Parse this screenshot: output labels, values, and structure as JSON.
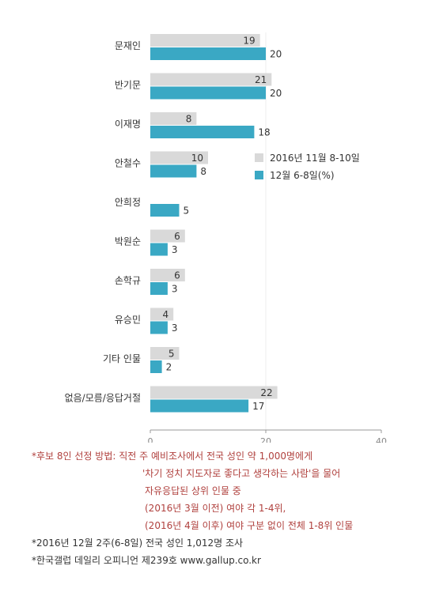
{
  "chart_data": {
    "type": "bar",
    "orientation": "horizontal",
    "categories": [
      "문재인",
      "반기문",
      "이재명",
      "안철수",
      "안희정",
      "박원순",
      "손학규",
      "유승민",
      "기타 인물",
      "없음/모름/응답거절"
    ],
    "series": [
      {
        "name": "2016년 11월 8-10일",
        "color": "#d9d9d9",
        "values": [
          19,
          21,
          8,
          10,
          null,
          6,
          6,
          4,
          5,
          22
        ]
      },
      {
        "name": "12월 6-8일(%)",
        "color": "#3aa8c4",
        "values": [
          20,
          20,
          18,
          8,
          5,
          3,
          3,
          3,
          2,
          17
        ]
      }
    ],
    "xlim": [
      0,
      40
    ],
    "xticks": [
      "0",
      "20",
      "40"
    ],
    "legend_position": "right"
  },
  "notes": {
    "line1": "*후보 8인 선정 방법: 직전 주 예비조사에서 전국 성인 약 1,000명에게",
    "line2": "'차기 정치 지도자로 좋다고 생각하는 사람'을 물어",
    "line3": "자유응답된 상위 인물 중",
    "line4": "(2016년 3월 이전) 여야 각 1-4위,",
    "line5": "(2016년 4월 이후) 여야 구분 없이 전체 1-8위 인물",
    "line6": "*2016년 12월 2주(6-8일) 전국 성인 1,012명 조사",
    "line7": "*한국갤럽 데일리 오피니언 제239호 www.gallup.co.kr"
  }
}
